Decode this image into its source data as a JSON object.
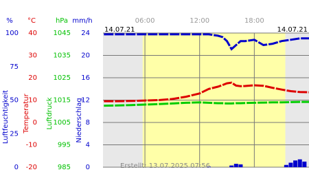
{
  "chart_data": {
    "type": "line",
    "date_left": "14.07.21",
    "date_right": "14.07.21",
    "footer": "Erstellt: 13.07.2025 07:56",
    "xlim": [
      1.4,
      24
    ],
    "xticks": [
      {
        "value": 6,
        "label": "06:00"
      },
      {
        "value": 12,
        "label": "12:00"
      },
      {
        "value": 18,
        "label": "18:00"
      }
    ],
    "daylight": [
      5.75,
      21.4
    ],
    "grid": true,
    "axes": [
      {
        "unit": "%",
        "label": "Luftfeuchtigkeit",
        "color": "#0000cc",
        "ylim": [
          0,
          100
        ],
        "yticks": [
          0,
          25,
          50,
          75,
          100
        ]
      },
      {
        "unit": "°C",
        "label": "Temperatur",
        "color": "#dd0000",
        "ylim": [
          -20,
          40
        ],
        "yticks": [
          -20,
          -10,
          0,
          10,
          20,
          30,
          40
        ]
      },
      {
        "unit": "hPa",
        "label": "Luftdruck",
        "color": "#00c000",
        "ylim": [
          985,
          1045
        ],
        "yticks": [
          985,
          995,
          1005,
          1015,
          1025,
          1035,
          1045
        ]
      },
      {
        "unit": "mm/h",
        "label": "Niederschlag",
        "color": "#0000cc",
        "ylim": [
          0,
          24
        ],
        "yticks": [
          0,
          4,
          8,
          12,
          16,
          20,
          24
        ]
      }
    ],
    "x": [
      1.5,
      3,
      4.5,
      6,
      7.5,
      9,
      10.5,
      12,
      13,
      14,
      14.5,
      15,
      15.5,
      16,
      16.5,
      17,
      18,
      19,
      20,
      21,
      22,
      23,
      24
    ],
    "series": [
      {
        "type": "line",
        "axis": 0,
        "color": "#0000cc",
        "values": [
          99,
          99,
          99,
          99,
          99,
          99,
          99,
          99,
          99,
          98,
          97,
          94,
          88,
          91,
          94,
          94,
          95,
          91,
          92,
          94,
          95,
          96,
          96
        ]
      },
      {
        "type": "line",
        "axis": 1,
        "color": "#dd0000",
        "values": [
          9.5,
          9.5,
          9.6,
          9.8,
          10,
          10.5,
          11.5,
          13,
          15,
          16,
          16.7,
          17.5,
          17.8,
          16.5,
          16.2,
          16.3,
          16.6,
          16.4,
          15.5,
          14.7,
          14,
          13.6,
          13.5
        ]
      },
      {
        "type": "line",
        "axis": 2,
        "color": "#00cc00",
        "values": [
          1012.5,
          1012.6,
          1012.8,
          1013,
          1013.2,
          1013.5,
          1013.8,
          1014,
          1013.8,
          1013.6,
          1013.6,
          1013.5,
          1013.5,
          1013.6,
          1013.6,
          1013.7,
          1013.8,
          1013.9,
          1014,
          1014,
          1014.1,
          1014.2,
          1014.2
        ]
      },
      {
        "type": "bar",
        "axis": 3,
        "color": "#0000cc",
        "x": [
          13,
          15.5,
          16,
          16.5,
          21.5,
          22,
          22.5,
          23,
          23.5
        ],
        "values": [
          0.1,
          0.3,
          0.6,
          0.5,
          0.4,
          0.8,
          1.2,
          1.4,
          1.0
        ]
      }
    ]
  }
}
